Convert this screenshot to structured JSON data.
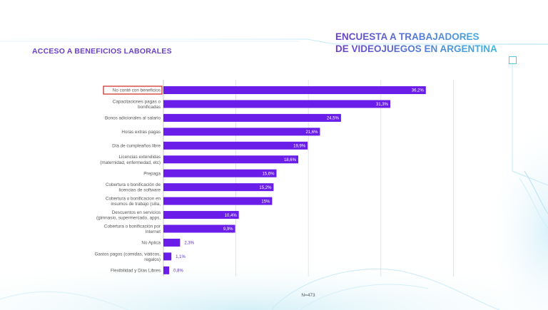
{
  "header": {
    "subtitle": "ACCESO A BENEFICIOS LABORALES",
    "title_line1": "ENCUESTA A TRABAJADORES",
    "title_line2": "DE VIDEOJUEGOS EN  ARGENTINA"
  },
  "colors": {
    "bar": "#6a1de8",
    "highlight_border": "#d0342c",
    "title_gradient_start": "#6a3fc9",
    "title_gradient_end": "#3fb6e0",
    "accent_cyan": "#4cc9e8"
  },
  "chart_data": {
    "type": "bar",
    "orientation": "horizontal",
    "categories": [
      [
        "No conté con beneficios"
      ],
      [
        "Capacitaciones pagas o",
        "bonificadas"
      ],
      [
        "Bonos adicionales al salario"
      ],
      [
        "Horas extras pagas"
      ],
      [
        "Día de cumpleaños libre"
      ],
      [
        "Licencias extendidas",
        "(maternidad, enfermedad, etc)"
      ],
      [
        "Prepaga"
      ],
      [
        "Cobertura o bonificación de",
        "licencias de software"
      ],
      [
        "Cobertura o bonificacion en",
        "insumos de trabajo (silla,"
      ],
      [
        "Descuentos en servicios",
        "(gimnasio, supermercado, apps,"
      ],
      [
        "Cobertura o bonificación por",
        "Internet"
      ],
      [
        "No Aplica"
      ],
      [
        "Gastos pagos (comidas, viáticos,",
        "regalos)"
      ],
      [
        "Flexibilidad y Días Libres"
      ]
    ],
    "values": [
      36.2,
      31.3,
      24.5,
      21.6,
      19.9,
      18.6,
      15.6,
      15.2,
      15,
      10.4,
      9.9,
      2.3,
      1.1,
      0.8
    ],
    "value_labels": [
      "36,2%",
      "31,3%",
      "24,5%",
      "21,6%",
      "19,9%",
      "18,6%",
      "15,6%",
      "15,2%",
      "15%",
      "10,4%",
      "9,9%",
      "2,3%",
      "1,1%",
      "0,8%"
    ],
    "xlim": [
      0,
      40
    ],
    "grid": true,
    "highlighted_category": "No conté con beneficios",
    "note": "N=473"
  }
}
